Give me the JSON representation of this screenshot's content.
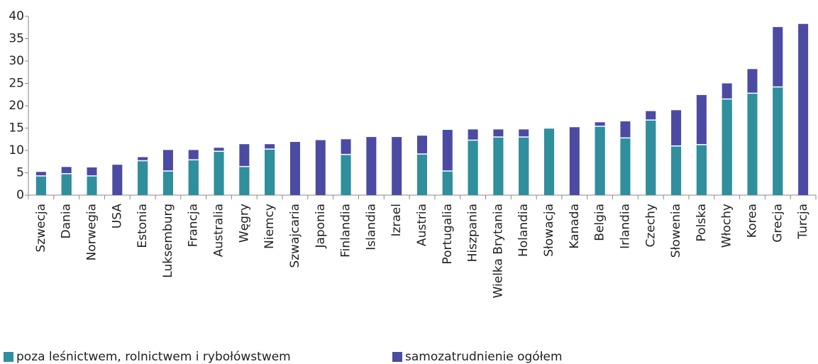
{
  "chart_data": {
    "type": "overlay-bar",
    "categories": [
      "Szwecja",
      "Dania",
      "Norwegia",
      "USA",
      "Estonia",
      "Luksemburg",
      "Francja",
      "Australia",
      "Węgry",
      "Niemcy",
      "Szwajcaria",
      "Japonia",
      "Finlandia",
      "Islandia",
      "Izrael",
      "Austria",
      "Portugalia",
      "Hiszpania",
      "Wielka Brytania",
      "Holandia",
      "Słowacja",
      "Kanada",
      "Belgia",
      "Irlandia",
      "Czechy",
      "Słowenia",
      "Polska",
      "Włochy",
      "Korea",
      "Grecja",
      "Turcja"
    ],
    "series": [
      {
        "name": "samozatrudnienie ogółem",
        "color": "#4b4ba3",
        "values": [
          5.2,
          6.3,
          6.2,
          6.8,
          8.5,
          10.1,
          10.1,
          10.6,
          11.4,
          11.4,
          11.9,
          12.3,
          12.5,
          13.0,
          13.0,
          13.3,
          14.6,
          14.7,
          14.7,
          14.7,
          15.1,
          15.2,
          16.3,
          16.5,
          18.8,
          19.0,
          22.4,
          25.0,
          28.2,
          37.6,
          38.3
        ]
      },
      {
        "name": "poza leśnictwem, rolnictwem i rybołówstwem",
        "color": "#2f8f9c",
        "values": [
          4.3,
          4.8,
          4.3,
          null,
          7.7,
          5.4,
          7.9,
          9.8,
          6.4,
          10.3,
          null,
          null,
          9.1,
          null,
          null,
          9.2,
          5.4,
          12.3,
          13.0,
          13.0,
          15.0,
          null,
          15.4,
          12.8,
          16.8,
          11.0,
          11.3,
          21.5,
          22.8,
          24.2,
          null
        ]
      }
    ],
    "ylim": [
      0,
      40
    ],
    "yticks": [
      0,
      5,
      10,
      15,
      20,
      25,
      30,
      35,
      40
    ]
  }
}
